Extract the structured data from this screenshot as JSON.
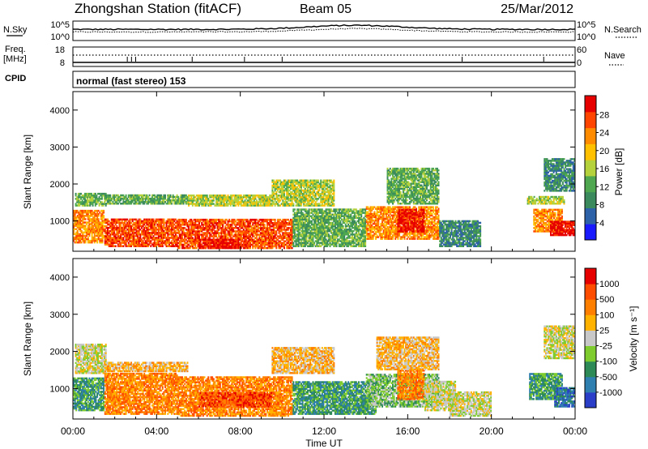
{
  "header": {
    "station": "Zhongshan Station (fitACF)",
    "beam": "Beam 05",
    "date": "25/Mar/2012"
  },
  "noise_panel": {
    "left_label": "N.Sky",
    "left_ticks": [
      "10^5",
      "10^0"
    ],
    "right_ticks": [
      "10^5",
      "10^0"
    ],
    "right_label": "N.Search"
  },
  "freq_panel": {
    "left_label_1": "Freq.",
    "left_label_2": "[MHz]",
    "left_ticks": [
      "18",
      "8"
    ],
    "right_ticks": [
      "60",
      "0"
    ],
    "right_label": "Nave"
  },
  "cpid": {
    "label": "CPID",
    "value": "normal (fast stereo) 153"
  },
  "colors": {
    "power_scale": [
      "#1a1aff",
      "#2d62a8",
      "#3a8a5e",
      "#4fa84f",
      "#b5d23c",
      "#ffc000",
      "#ff8c00",
      "#ff4500",
      "#e60000"
    ],
    "velocity_scale": [
      "#2a3ec8",
      "#2f7fb0",
      "#2e8b57",
      "#7fcc2e",
      "#c8c8c8",
      "#ffb300",
      "#ff8000",
      "#ff4d00",
      "#e60000"
    ]
  },
  "chart_data": [
    {
      "type": "heatmap",
      "panel": "power",
      "ylabel": "Slant Range [km]",
      "yticks": [
        "1000",
        "2000",
        "3000",
        "4000"
      ],
      "ylim": [
        180,
        4500
      ],
      "xlim": [
        0,
        24
      ],
      "colorbar_label": "Power [dB]",
      "colorbar_ticks": [
        "4",
        "8",
        "12",
        "16",
        "20",
        "24",
        "28"
      ],
      "bands": [
        {
          "t0": 0.0,
          "t1": 1.5,
          "r0": 400,
          "r1": 1300,
          "level": 6
        },
        {
          "t0": 0.1,
          "t1": 1.6,
          "r0": 1400,
          "r1": 1750,
          "level": 3
        },
        {
          "t0": 1.5,
          "t1": 5.0,
          "r0": 300,
          "r1": 1050,
          "level": 7
        },
        {
          "t0": 1.5,
          "t1": 5.5,
          "r0": 1450,
          "r1": 1700,
          "level": 3
        },
        {
          "t0": 5.0,
          "t1": 10.5,
          "r0": 250,
          "r1": 1050,
          "level": 7
        },
        {
          "t0": 5.5,
          "t1": 9.5,
          "r0": 1400,
          "r1": 1700,
          "level": 4
        },
        {
          "t0": 6.0,
          "t1": 8.0,
          "r0": 250,
          "r1": 500,
          "level": 8
        },
        {
          "t0": 9.5,
          "t1": 12.5,
          "r0": 1400,
          "r1": 2100,
          "level": 4
        },
        {
          "t0": 10.5,
          "t1": 14.0,
          "r0": 300,
          "r1": 1300,
          "level": 3
        },
        {
          "t0": 14.0,
          "t1": 17.5,
          "r0": 500,
          "r1": 1400,
          "level": 6
        },
        {
          "t0": 15.5,
          "t1": 16.8,
          "r0": 700,
          "r1": 1300,
          "level": 8
        },
        {
          "t0": 15.0,
          "t1": 17.5,
          "r0": 1450,
          "r1": 2400,
          "level": 3
        },
        {
          "t0": 17.5,
          "t1": 19.5,
          "r0": 300,
          "r1": 1000,
          "level": 2
        },
        {
          "t0": 21.7,
          "t1": 23.5,
          "r0": 1450,
          "r1": 1650,
          "level": 4
        },
        {
          "t0": 22.0,
          "t1": 23.4,
          "r0": 700,
          "r1": 1300,
          "level": 6
        },
        {
          "t0": 22.8,
          "t1": 24.0,
          "r0": 600,
          "r1": 1000,
          "level": 8
        },
        {
          "t0": 22.5,
          "t1": 24.0,
          "r0": 1800,
          "r1": 2700,
          "level": 2
        }
      ]
    },
    {
      "type": "heatmap",
      "panel": "velocity",
      "ylabel": "Slant Range [km]",
      "yticks": [
        "1000",
        "2000",
        "3000",
        "4000"
      ],
      "ylim": [
        180,
        4500
      ],
      "xlim": [
        0,
        24
      ],
      "xlabel": "Time UT",
      "xticks": [
        "00:00",
        "04:00",
        "08:00",
        "12:00",
        "16:00",
        "20:00",
        "00:00"
      ],
      "colorbar_label": "Velocity [m s⁻¹]",
      "colorbar_ticks": [
        "1000",
        "500",
        "100",
        "25",
        "-25",
        "-100",
        "-500",
        "-1000"
      ],
      "bands": [
        {
          "t0": 0.0,
          "t1": 1.5,
          "r0": 400,
          "r1": 1300,
          "level": 2
        },
        {
          "t0": 0.1,
          "t1": 1.6,
          "r0": 1400,
          "r1": 2200,
          "level": 4
        },
        {
          "t0": 1.5,
          "t1": 5.0,
          "r0": 300,
          "r1": 1400,
          "level": 6
        },
        {
          "t0": 1.5,
          "t1": 5.5,
          "r0": 1450,
          "r1": 1700,
          "level": 5
        },
        {
          "t0": 5.0,
          "t1": 10.5,
          "r0": 250,
          "r1": 1300,
          "level": 6
        },
        {
          "t0": 6.0,
          "t1": 9.5,
          "r0": 500,
          "r1": 900,
          "level": 7
        },
        {
          "t0": 9.5,
          "t1": 12.5,
          "r0": 1400,
          "r1": 2100,
          "level": 5
        },
        {
          "t0": 10.5,
          "t1": 14.5,
          "r0": 300,
          "r1": 1200,
          "level": 2
        },
        {
          "t0": 14.0,
          "t1": 17.5,
          "r0": 500,
          "r1": 1400,
          "level": 3
        },
        {
          "t0": 15.5,
          "t1": 16.8,
          "r0": 700,
          "r1": 1500,
          "level": 6
        },
        {
          "t0": 16.8,
          "t1": 18.3,
          "r0": 400,
          "r1": 1200,
          "level": 4
        },
        {
          "t0": 14.5,
          "t1": 17.5,
          "r0": 1500,
          "r1": 2400,
          "level": 5
        },
        {
          "t0": 18.0,
          "t1": 20.0,
          "r0": 250,
          "r1": 900,
          "level": 4
        },
        {
          "t0": 21.8,
          "t1": 23.4,
          "r0": 700,
          "r1": 1400,
          "level": 2
        },
        {
          "t0": 23.0,
          "t1": 24.0,
          "r0": 500,
          "r1": 1000,
          "level": 1
        },
        {
          "t0": 22.5,
          "t1": 24.0,
          "r0": 1800,
          "r1": 2700,
          "level": 4
        }
      ]
    }
  ]
}
